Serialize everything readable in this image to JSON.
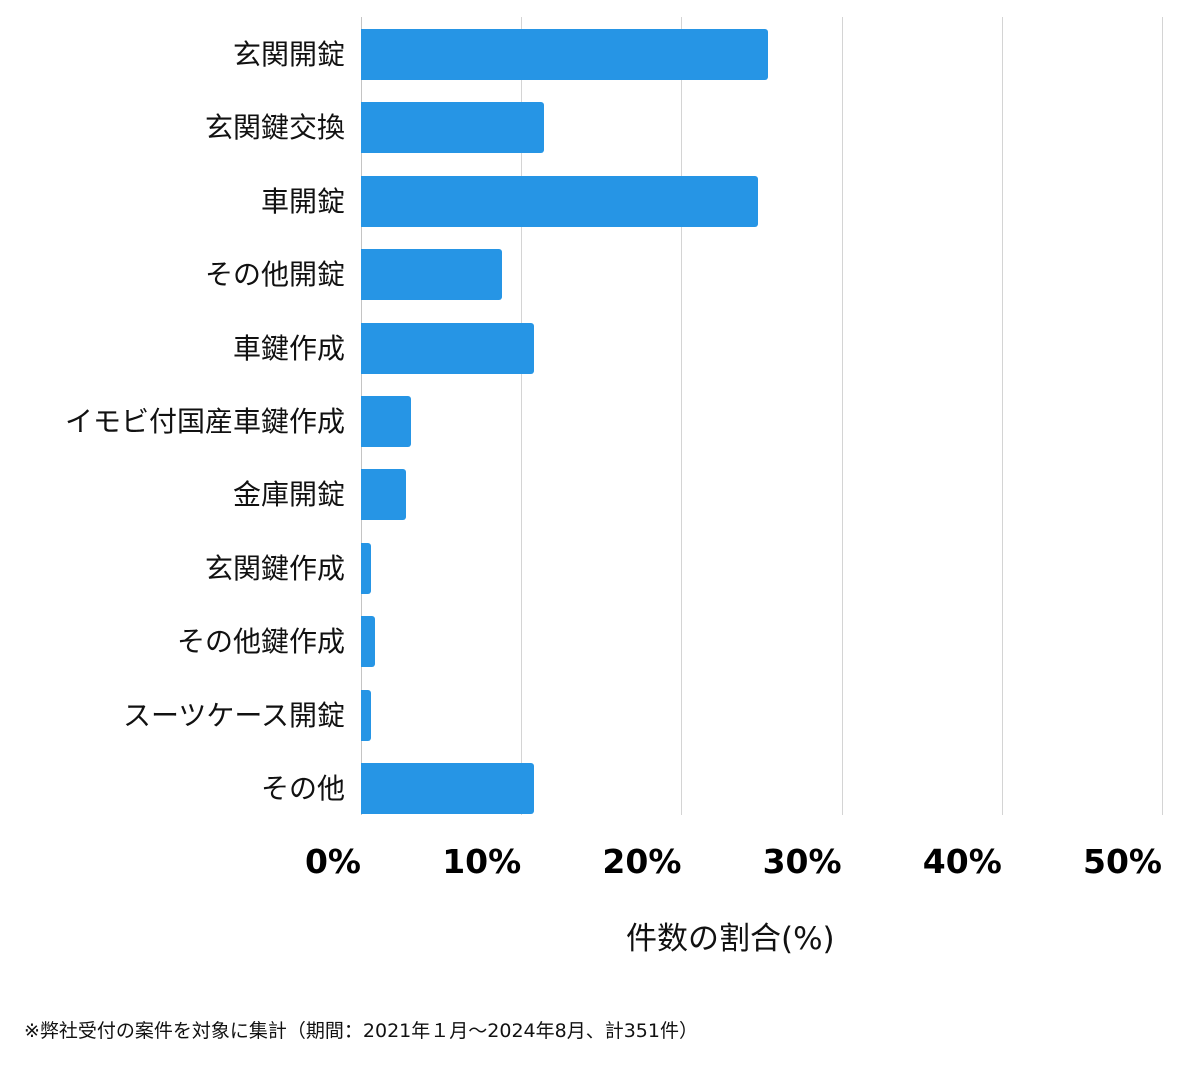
{
  "chart_data": {
    "type": "bar",
    "orientation": "horizontal",
    "title": "",
    "xlabel": "件数の割合(%)",
    "ylabel": "",
    "xlim": [
      0,
      50
    ],
    "x_ticks": [
      "0%",
      "10%",
      "20%",
      "30%",
      "40%",
      "50%"
    ],
    "grid": true,
    "legend": null,
    "bar_color": "#2695e5",
    "categories": [
      "玄関開錠",
      "玄関鍵交換",
      "車開錠",
      "その他開錠",
      "車鍵作成",
      "イモビ付国産車鍵作成",
      "金庫開錠",
      "玄関鍵作成",
      "その他鍵作成",
      "スーツケース開錠",
      "その他"
    ],
    "values": [
      25.4,
      11.4,
      24.8,
      8.8,
      10.8,
      3.1,
      2.8,
      0.6,
      0.9,
      0.6,
      10.8
    ],
    "footnote": "※弊社受付の案件を対象に集計（期間：2021年１月～2024年8月、計351件）"
  }
}
